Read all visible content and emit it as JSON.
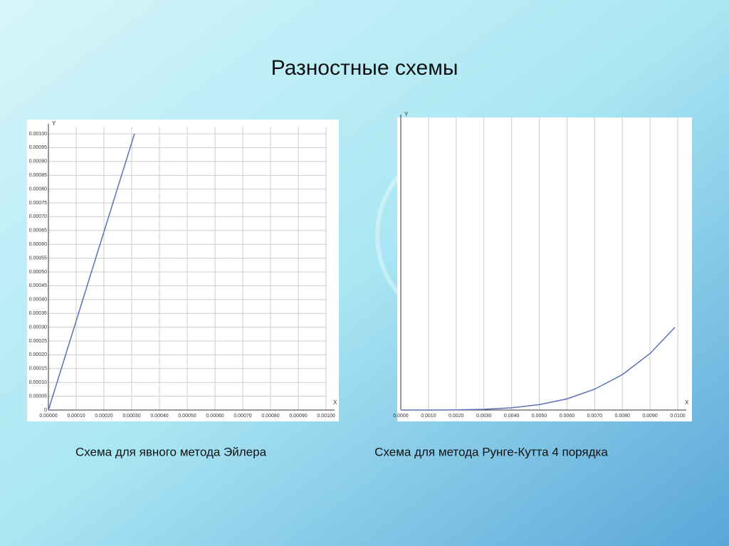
{
  "title": "Разностные схемы",
  "chart_data": [
    {
      "type": "line",
      "caption": "Схема для явного метода Эйлера",
      "xlabel": "X",
      "ylabel": "Y",
      "color": "#5b6fb5",
      "grid": "both",
      "x": [
        0,
        0.00031
      ],
      "values": [
        0,
        0.001
      ],
      "xlim": [
        0,
        0.001
      ],
      "ylim": [
        0,
        0.001
      ],
      "xticks": [
        {
          "value": 0,
          "label": "0.00000"
        },
        {
          "value": 0.0001,
          "label": "0.00010"
        },
        {
          "value": 0.0002,
          "label": "0.00020"
        },
        {
          "value": 0.0003,
          "label": "0.00030"
        },
        {
          "value": 0.0004,
          "label": "0.00040"
        },
        {
          "value": 0.0005,
          "label": "0.00050"
        },
        {
          "value": 0.0006,
          "label": "0.00060"
        },
        {
          "value": 0.0007,
          "label": "0.00070"
        },
        {
          "value": 0.0008,
          "label": "0.00080"
        },
        {
          "value": 0.0009,
          "label": "0.00090"
        },
        {
          "value": 0.001,
          "label": "0.00100"
        }
      ],
      "yticks": [
        0,
        5e-05,
        {
          "value": 0.0001,
          "label": "0.00010"
        },
        0.00015,
        {
          "value": 0.0002,
          "label": "0.00020"
        },
        0.00025,
        {
          "value": 0.0003,
          "label": "0.00030"
        },
        0.00035,
        {
          "value": 0.0004,
          "label": "0.00040"
        },
        0.00045,
        {
          "value": 0.0005,
          "label": "0.00050"
        },
        0.00055,
        {
          "value": 0.0006,
          "label": "0.00060"
        },
        0.00065,
        {
          "value": 0.0007,
          "label": "0.00070"
        },
        0.00075,
        {
          "value": 0.0008,
          "label": "0.00080"
        },
        0.00085,
        {
          "value": 0.0009,
          "label": "0.00090"
        },
        0.00095,
        {
          "value": 0.001,
          "label": "0.00100"
        }
      ]
    },
    {
      "type": "line",
      "caption": "Схема для метода Рунге-Кутта 4 порядка",
      "xlabel": "X",
      "ylabel": "Y",
      "color": "#5b6fb5",
      "grid": "x",
      "x": [
        0,
        0.001,
        0.002,
        0.003,
        0.004,
        0.005,
        0.006,
        0.007,
        0.008,
        0.009,
        0.0099
      ],
      "values": [
        0,
        0.0,
        0.0005,
        0.0024,
        0.0077,
        0.0189,
        0.039,
        0.073,
        0.124,
        0.198,
        0.29
      ],
      "xlim": [
        0,
        0.01
      ],
      "ylim": [
        0,
        1
      ],
      "xticks": [
        {
          "value": 0,
          "label": "0.0000"
        },
        {
          "value": 0.001,
          "label": "0.0010"
        },
        {
          "value": 0.002,
          "label": "0.0020"
        },
        {
          "value": 0.003,
          "label": "0.0030"
        },
        {
          "value": 0.004,
          "label": "0.0040"
        },
        {
          "value": 0.005,
          "label": "0.0050"
        },
        {
          "value": 0.006,
          "label": "0.0060"
        },
        {
          "value": 0.007,
          "label": "0.0070"
        },
        {
          "value": 0.008,
          "label": "0.0080"
        },
        {
          "value": 0.009,
          "label": "0.0090"
        },
        {
          "value": 0.01,
          "label": "0.0100"
        }
      ]
    }
  ]
}
